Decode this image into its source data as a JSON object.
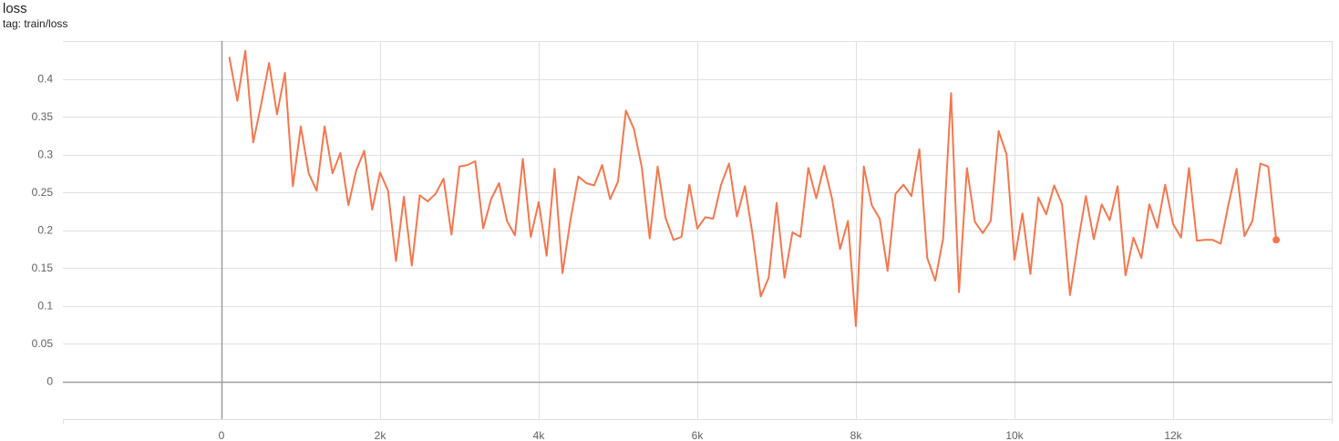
{
  "header": {
    "title": "loss",
    "subtitle": "tag: train/loss"
  },
  "colors": {
    "series": "#f4774e",
    "grid": "#e0e0e0",
    "axis_zero": "#9e9e9e",
    "tick_text": "#616161"
  },
  "chart_data": {
    "type": "line",
    "title": "loss",
    "subtitle": "tag: train/loss",
    "xlabel": "",
    "ylabel": "",
    "xlim": [
      -2000,
      14000
    ],
    "ylim": [
      -0.05,
      0.45
    ],
    "grid": true,
    "x_ticks": [
      0,
      2000,
      4000,
      6000,
      8000,
      10000,
      12000
    ],
    "x_tick_labels": [
      "0",
      "2k",
      "4k",
      "6k",
      "8k",
      "10k",
      "12k"
    ],
    "y_ticks": [
      0,
      0.05,
      0.1,
      0.15,
      0.2,
      0.25,
      0.3,
      0.35,
      0.4
    ],
    "y_tick_labels": [
      "0",
      "0.05",
      "0.1",
      "0.15",
      "0.2",
      "0.25",
      "0.3",
      "0.35",
      "0.4"
    ],
    "series": [
      {
        "x": [
          100,
          200,
          300,
          400,
          500,
          600,
          700,
          800,
          900,
          1000,
          1100,
          1200,
          1300,
          1400,
          1500,
          1600,
          1700,
          1800,
          1900,
          2000,
          2100,
          2200,
          2300,
          2400,
          2500,
          2600,
          2700,
          2800,
          2900,
          3000,
          3100,
          3200,
          3300,
          3400,
          3500,
          3600,
          3700,
          3800,
          3900,
          4000,
          4100,
          4200,
          4300,
          4400,
          4500,
          4600,
          4700,
          4800,
          4900,
          5000,
          5100,
          5200,
          5300,
          5400,
          5500,
          5600,
          5700,
          5800,
          5900,
          6000,
          6100,
          6200,
          6300,
          6400,
          6500,
          6600,
          6700,
          6800,
          6900,
          7000,
          7100,
          7200,
          7300,
          7400,
          7500,
          7600,
          7700,
          7800,
          7900,
          8000,
          8100,
          8200,
          8300,
          8400,
          8500,
          8600,
          8700,
          8800,
          8900,
          9000,
          9100,
          9200,
          9300,
          9400,
          9500,
          9600,
          9700,
          9800,
          9900,
          10000,
          10100,
          10200,
          10300,
          10400,
          10500,
          10600,
          10700,
          10800,
          10900,
          11000,
          11100,
          11200,
          11300,
          11400,
          11500,
          11600,
          11700,
          11800,
          11900,
          12000,
          12100,
          12200,
          12300,
          12400,
          12500,
          12600,
          12700,
          12800,
          12900,
          13000,
          13100,
          13200,
          13300
        ],
        "y": [
          0.428,
          0.371,
          0.437,
          0.316,
          0.366,
          0.421,
          0.353,
          0.408,
          0.258,
          0.337,
          0.275,
          0.252,
          0.337,
          0.275,
          0.302,
          0.233,
          0.279,
          0.305,
          0.227,
          0.276,
          0.252,
          0.159,
          0.244,
          0.153,
          0.246,
          0.238,
          0.248,
          0.268,
          0.194,
          0.284,
          0.286,
          0.291,
          0.202,
          0.241,
          0.262,
          0.212,
          0.193,
          0.294,
          0.191,
          0.237,
          0.166,
          0.281,
          0.143,
          0.213,
          0.271,
          0.262,
          0.259,
          0.286,
          0.241,
          0.264,
          0.358,
          0.334,
          0.283,
          0.189,
          0.284,
          0.216,
          0.187,
          0.191,
          0.26,
          0.202,
          0.217,
          0.215,
          0.26,
          0.288,
          0.218,
          0.258,
          0.192,
          0.112,
          0.137,
          0.236,
          0.137,
          0.197,
          0.191,
          0.282,
          0.242,
          0.285,
          0.241,
          0.175,
          0.212,
          0.073,
          0.284,
          0.233,
          0.215,
          0.146,
          0.248,
          0.26,
          0.245,
          0.307,
          0.163,
          0.133,
          0.189,
          0.381,
          0.118,
          0.282,
          0.211,
          0.196,
          0.212,
          0.331,
          0.3,
          0.161,
          0.222,
          0.142,
          0.243,
          0.221,
          0.259,
          0.234,
          0.114,
          0.183,
          0.245,
          0.188,
          0.234,
          0.213,
          0.258,
          0.14,
          0.19,
          0.163,
          0.234,
          0.203,
          0.26,
          0.208,
          0.19,
          0.282,
          0.186,
          0.187,
          0.187,
          0.182,
          0.235,
          0.281,
          0.192,
          0.212,
          0.288,
          0.284,
          0.187
        ]
      }
    ]
  }
}
